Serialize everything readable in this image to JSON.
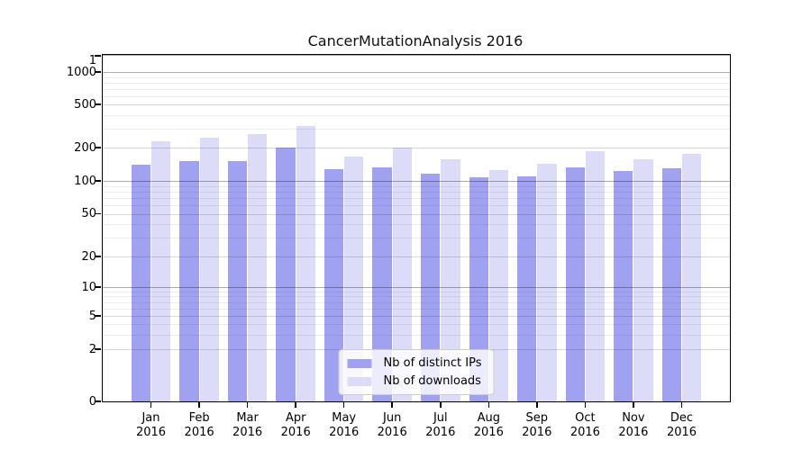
{
  "chart_data": {
    "type": "bar",
    "title": "CancerMutationAnalysis 2016",
    "categories": [
      "Jan",
      "Feb",
      "Mar",
      "Apr",
      "May",
      "Jun",
      "Jul",
      "Aug",
      "Sep",
      "Oct",
      "Nov",
      "Dec"
    ],
    "category_year": "2016",
    "series": [
      {
        "name": "Nb of distinct IPs",
        "color": "#a1a1f1",
        "values": [
          140,
          151,
          152,
          202,
          128,
          132,
          116,
          107,
          110,
          133,
          122,
          130
        ]
      },
      {
        "name": "Nb of downloads",
        "color": "#dcdcf9",
        "values": [
          228,
          246,
          265,
          317,
          167,
          202,
          158,
          126,
          142,
          186,
          158,
          175
        ]
      }
    ],
    "y_axis": {
      "scale": "symlog",
      "tick_values": [
        0,
        1,
        2,
        5,
        10,
        20,
        50,
        100,
        200,
        500,
        1000
      ],
      "tick_labels": [
        "0",
        "1",
        "2",
        "5",
        "10",
        "20",
        "50",
        "100",
        "200",
        "500",
        "1000"
      ]
    },
    "grid": {
      "major_lines": [
        1,
        10,
        100,
        1000
      ],
      "mid_lines": [
        2,
        5,
        20,
        50,
        200,
        500
      ],
      "minor_lines": [
        3,
        4,
        6,
        7,
        8,
        9,
        30,
        40,
        60,
        70,
        80,
        90,
        300,
        400,
        600,
        700,
        800,
        900
      ]
    },
    "legend": {
      "position": "lower center",
      "entries": [
        "Nb of distinct IPs",
        "Nb of downloads"
      ]
    }
  }
}
